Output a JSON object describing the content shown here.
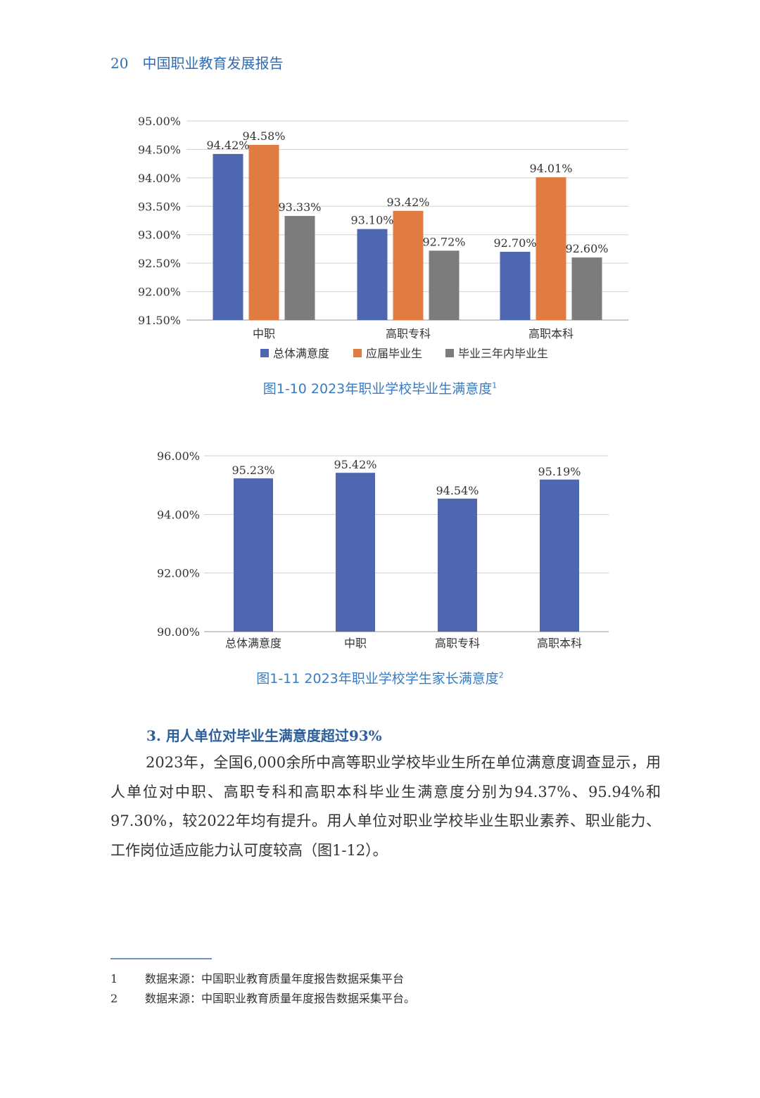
{
  "header": {
    "page_number": "20",
    "title": "中国职业教育发展报告"
  },
  "colors": {
    "blue": "#4e67b0",
    "orange": "#e07b41",
    "gray": "#7c7c7c",
    "accent": "#2e6db3"
  },
  "chart_data": [
    {
      "type": "bar",
      "categories": [
        "中职",
        "高职专科",
        "高职本科"
      ],
      "series": [
        {
          "name": "总体满意度",
          "values": [
            94.42,
            93.1,
            92.7
          ],
          "labels": [
            "94.42%",
            "93.10%",
            "92.70%"
          ],
          "color": "#4e67b0"
        },
        {
          "name": "应届毕业生",
          "values": [
            94.58,
            93.42,
            94.01
          ],
          "labels": [
            "94.58%",
            "93.42%",
            "94.01%"
          ],
          "color": "#e07b41"
        },
        {
          "name": "毕业三年内毕业生",
          "values": [
            93.33,
            92.72,
            92.6
          ],
          "labels": [
            "93.33%",
            "92.72%",
            "92.60%"
          ],
          "color": "#7c7c7c"
        }
      ],
      "ylim": [
        91.5,
        95.0
      ],
      "yticks": [
        "95.00%",
        "94.50%",
        "94.00%",
        "93.50%",
        "93.00%",
        "92.50%",
        "92.00%",
        "91.50%"
      ],
      "grid": true,
      "legend": "bottom",
      "caption": "图1-10  2023年职业学校毕业生满意度",
      "footnote_ref": "1"
    },
    {
      "type": "bar",
      "categories": [
        "总体满意度",
        "中职",
        "高职专科",
        "高职本科"
      ],
      "values": [
        95.23,
        95.42,
        94.54,
        95.19
      ],
      "labels": [
        "95.23%",
        "95.42%",
        "94.54%",
        "95.19%"
      ],
      "color": "#4e67b0",
      "ylim": [
        90,
        96
      ],
      "yticks": [
        "96.00%",
        "94.00%",
        "92.00%",
        "90.00%"
      ],
      "grid": true,
      "caption": "图1-11  2023年职业学校学生家长满意度",
      "footnote_ref": "2"
    }
  ],
  "section": {
    "heading": "3. 用人单位对毕业生满意度超过93%",
    "paragraph": "2023年，全国6,000余所中高等职业学校毕业生所在单位满意度调查显示，用人单位对中职、高职专科和高职本科毕业生满意度分别为94.37%、95.94%和97.30%，较2022年均有提升。用人单位对职业学校毕业生职业素养、职业能力、工作岗位适应能力认可度较高（图1-12）。"
  },
  "footnotes": [
    {
      "num": "1",
      "text": "数据来源：中国职业教育质量年度报告数据采集平台"
    },
    {
      "num": "2",
      "text": "数据来源：中国职业教育质量年度报告数据采集平台。"
    }
  ]
}
